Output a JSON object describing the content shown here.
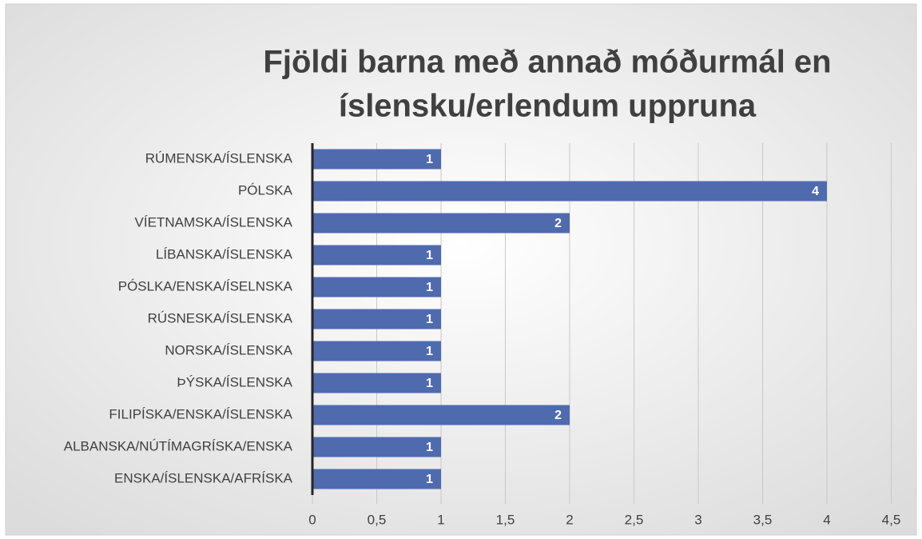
{
  "chart_data": {
    "type": "barh",
    "title": [
      "Fjöldi barna með annað móðurmál en",
      "íslensku/erlendum uppruna"
    ],
    "categories": [
      "RÚMENSKA/ÍSLENSKA",
      "PÓLSKA",
      "VÍETNAMSKA/ÍSLENSKA",
      "LÍBANSKA/ÍSLENSKA",
      "PÓSLKA/ENSKA/ÍSELNSKA",
      "RÚSNESKA/ÍSLENSKA",
      "NORSKA/ÍSLENSKA",
      "ÞÝSKA/ÍSLENSKA",
      "FILIPÍSKA/ENSKA/ÍSLENSKA",
      "ALBANSKA/NÚTÍMAGRÍSKA/ENSKA",
      "ENSKA/ÍSLENSKA/AFRÍSKA"
    ],
    "values": [
      1,
      4,
      2,
      1,
      1,
      1,
      1,
      1,
      2,
      1,
      1
    ],
    "color": "#4f6bad",
    "xlim": [
      0,
      4.5
    ],
    "xticks": [
      0,
      {
        "value": 0.5,
        "label": "0,5"
      },
      1,
      {
        "value": 1.5,
        "label": "1,5"
      },
      2,
      {
        "value": 2.5,
        "label": "2,5"
      },
      3,
      {
        "value": 3.5,
        "label": "3,5"
      },
      4,
      {
        "value": 4.5,
        "label": "4,5"
      }
    ],
    "grid": true
  }
}
